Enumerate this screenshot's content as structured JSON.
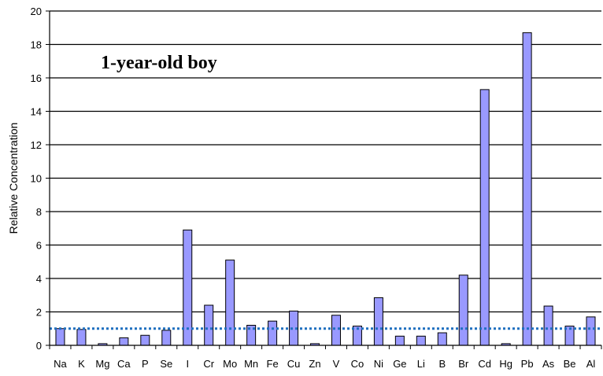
{
  "chart_data": {
    "type": "bar",
    "title": "1-year-old boy",
    "xlabel": "",
    "ylabel": "Relative Concentration",
    "ylim": [
      0,
      20
    ],
    "yticks": [
      0,
      2,
      4,
      6,
      8,
      10,
      12,
      14,
      16,
      18,
      20
    ],
    "grid": true,
    "reference_line": 1.0,
    "bar_color": "#9999ff",
    "reference_line_color": "#1f6fbf",
    "categories": [
      "Na",
      "K",
      "Mg",
      "Ca",
      "P",
      "Se",
      "I",
      "Cr",
      "Mo",
      "Mn",
      "Fe",
      "Cu",
      "Zn",
      "V",
      "Co",
      "Ni",
      "Ge",
      "Li",
      "B",
      "Br",
      "Cd",
      "Hg",
      "Pb",
      "As",
      "Be",
      "Al"
    ],
    "values": [
      1.0,
      0.95,
      0.1,
      0.45,
      0.6,
      0.9,
      6.9,
      2.4,
      5.1,
      1.2,
      1.45,
      2.05,
      0.1,
      1.8,
      1.15,
      2.85,
      0.55,
      0.55,
      0.75,
      4.2,
      15.3,
      0.1,
      18.7,
      2.35,
      1.15,
      1.7
    ]
  }
}
